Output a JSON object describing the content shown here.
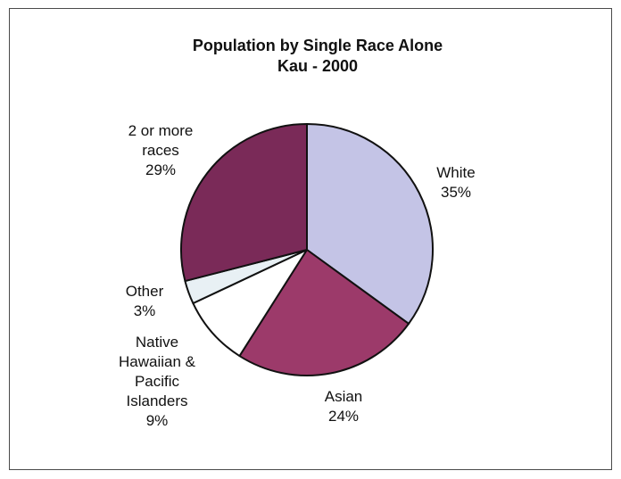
{
  "chart_data": {
    "type": "pie",
    "title": "Population by Single Race Alone",
    "subtitle": "Kau - 2000",
    "slices": [
      {
        "label_lines": [
          "White",
          "35%"
        ],
        "value": 35,
        "color": "#c4c4e6"
      },
      {
        "label_lines": [
          "Asian",
          "24%"
        ],
        "value": 24,
        "color": "#9c3a6a"
      },
      {
        "label_lines": [
          "Native",
          "Hawaiian &",
          "Pacific",
          "Islanders",
          "9%"
        ],
        "value": 9,
        "color": "#ffffff"
      },
      {
        "label_lines": [
          "Other",
          "3%"
        ],
        "value": 3,
        "color": "#e8f0f4"
      },
      {
        "label_lines": [
          "2 or more",
          "races",
          "29%"
        ],
        "value": 29,
        "color": "#7a2a58"
      }
    ],
    "legend": "none",
    "grid": false
  }
}
